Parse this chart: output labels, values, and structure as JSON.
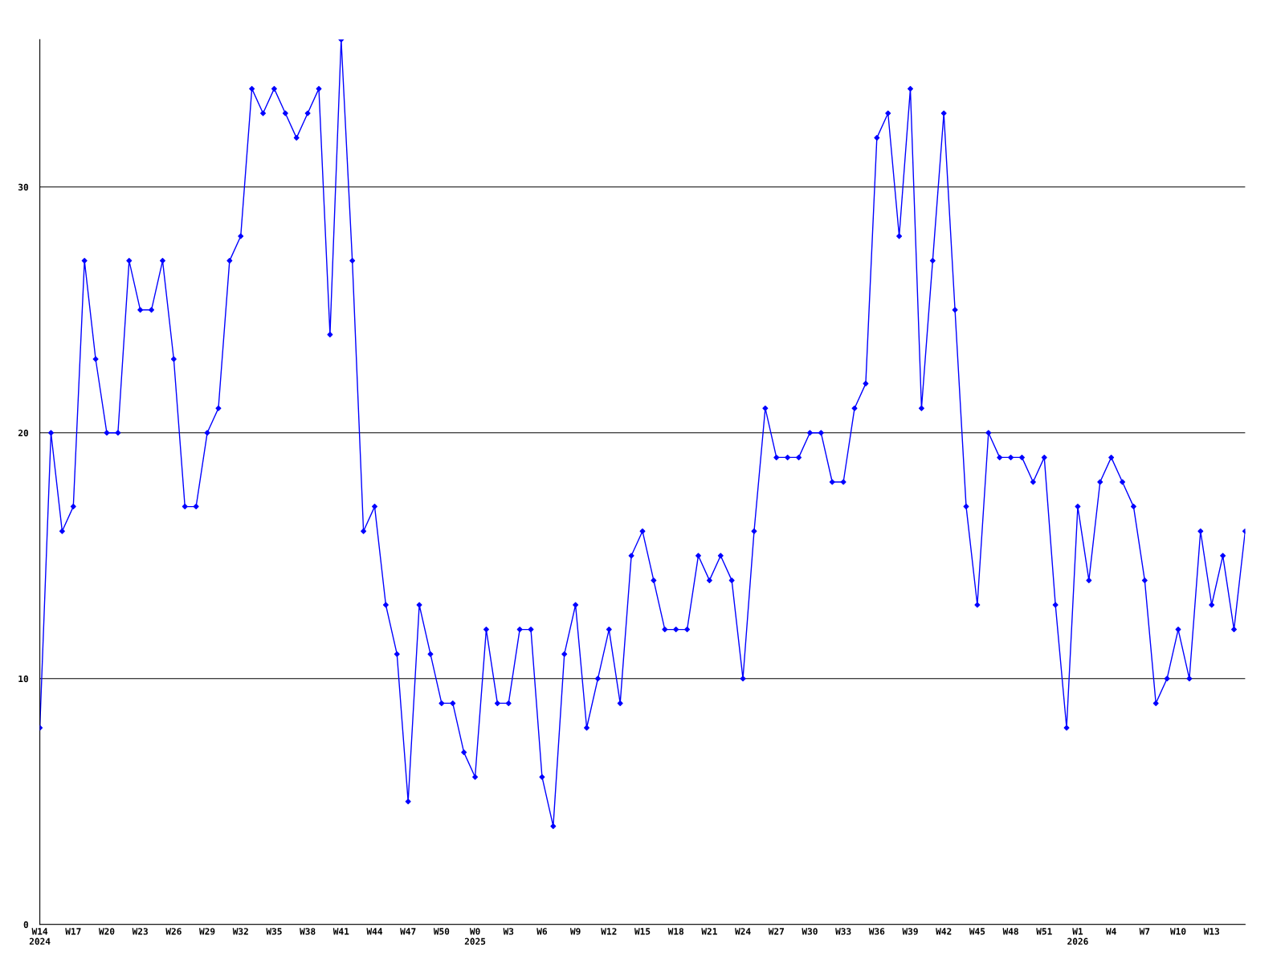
{
  "chart_data": {
    "type": "line",
    "categories": [
      "W14\n2024",
      null,
      null,
      "W17",
      null,
      null,
      "W20",
      null,
      null,
      "W23",
      null,
      null,
      "W26",
      null,
      null,
      "W29",
      null,
      null,
      "W32",
      null,
      null,
      "W35",
      null,
      null,
      "W38",
      null,
      null,
      "W41",
      null,
      null,
      "W44",
      null,
      null,
      "W47",
      null,
      null,
      "W50",
      null,
      null,
      "W0\n2025",
      null,
      null,
      "W3",
      null,
      null,
      "W6",
      null,
      null,
      "W9",
      null,
      null,
      "W12",
      null,
      null,
      "W15",
      null,
      null,
      "W18",
      null,
      null,
      "W21",
      null,
      null,
      "W24",
      null,
      null,
      "W27",
      null,
      null,
      "W30",
      null,
      null,
      "W33",
      null,
      null,
      "W36",
      null,
      null,
      "W39",
      null,
      null,
      "W42",
      null,
      null,
      "W45",
      null,
      null,
      "W48",
      null,
      null,
      "W51",
      null,
      null,
      "W1\n2026",
      null,
      null,
      "W4",
      null,
      null,
      "W7",
      null,
      null,
      "W10",
      null,
      null,
      "W13",
      null,
      null,
      null
    ],
    "series": [
      {
        "color": "#0000ff",
        "values": [
          8,
          20,
          16,
          17,
          27,
          23,
          20,
          20,
          27,
          25,
          25,
          27,
          23,
          17,
          17,
          20,
          21,
          27,
          28,
          34,
          33,
          34,
          33,
          32,
          33,
          34,
          24,
          36,
          27,
          16,
          17,
          13,
          11,
          5,
          13,
          11,
          9,
          9,
          7,
          6,
          12,
          9,
          9,
          12,
          12,
          6,
          4,
          11,
          13,
          8,
          10,
          12,
          9,
          15,
          16,
          14,
          12,
          12,
          12,
          15,
          14,
          15,
          14,
          10,
          16,
          21,
          19,
          19,
          19,
          20,
          20,
          18,
          18,
          21,
          22,
          32,
          33,
          28,
          34,
          21,
          27,
          33,
          25,
          17,
          13,
          20,
          19,
          19,
          19,
          18,
          19,
          13,
          8,
          17,
          14,
          18,
          19,
          18,
          17,
          14,
          9,
          10,
          12,
          10,
          16,
          13,
          15,
          12,
          16
        ]
      }
    ],
    "ylim": [
      0,
      36
    ],
    "yticks": [
      0,
      10,
      20,
      30
    ],
    "grid": "y",
    "marker": "diamond",
    "line_style": "solid"
  }
}
